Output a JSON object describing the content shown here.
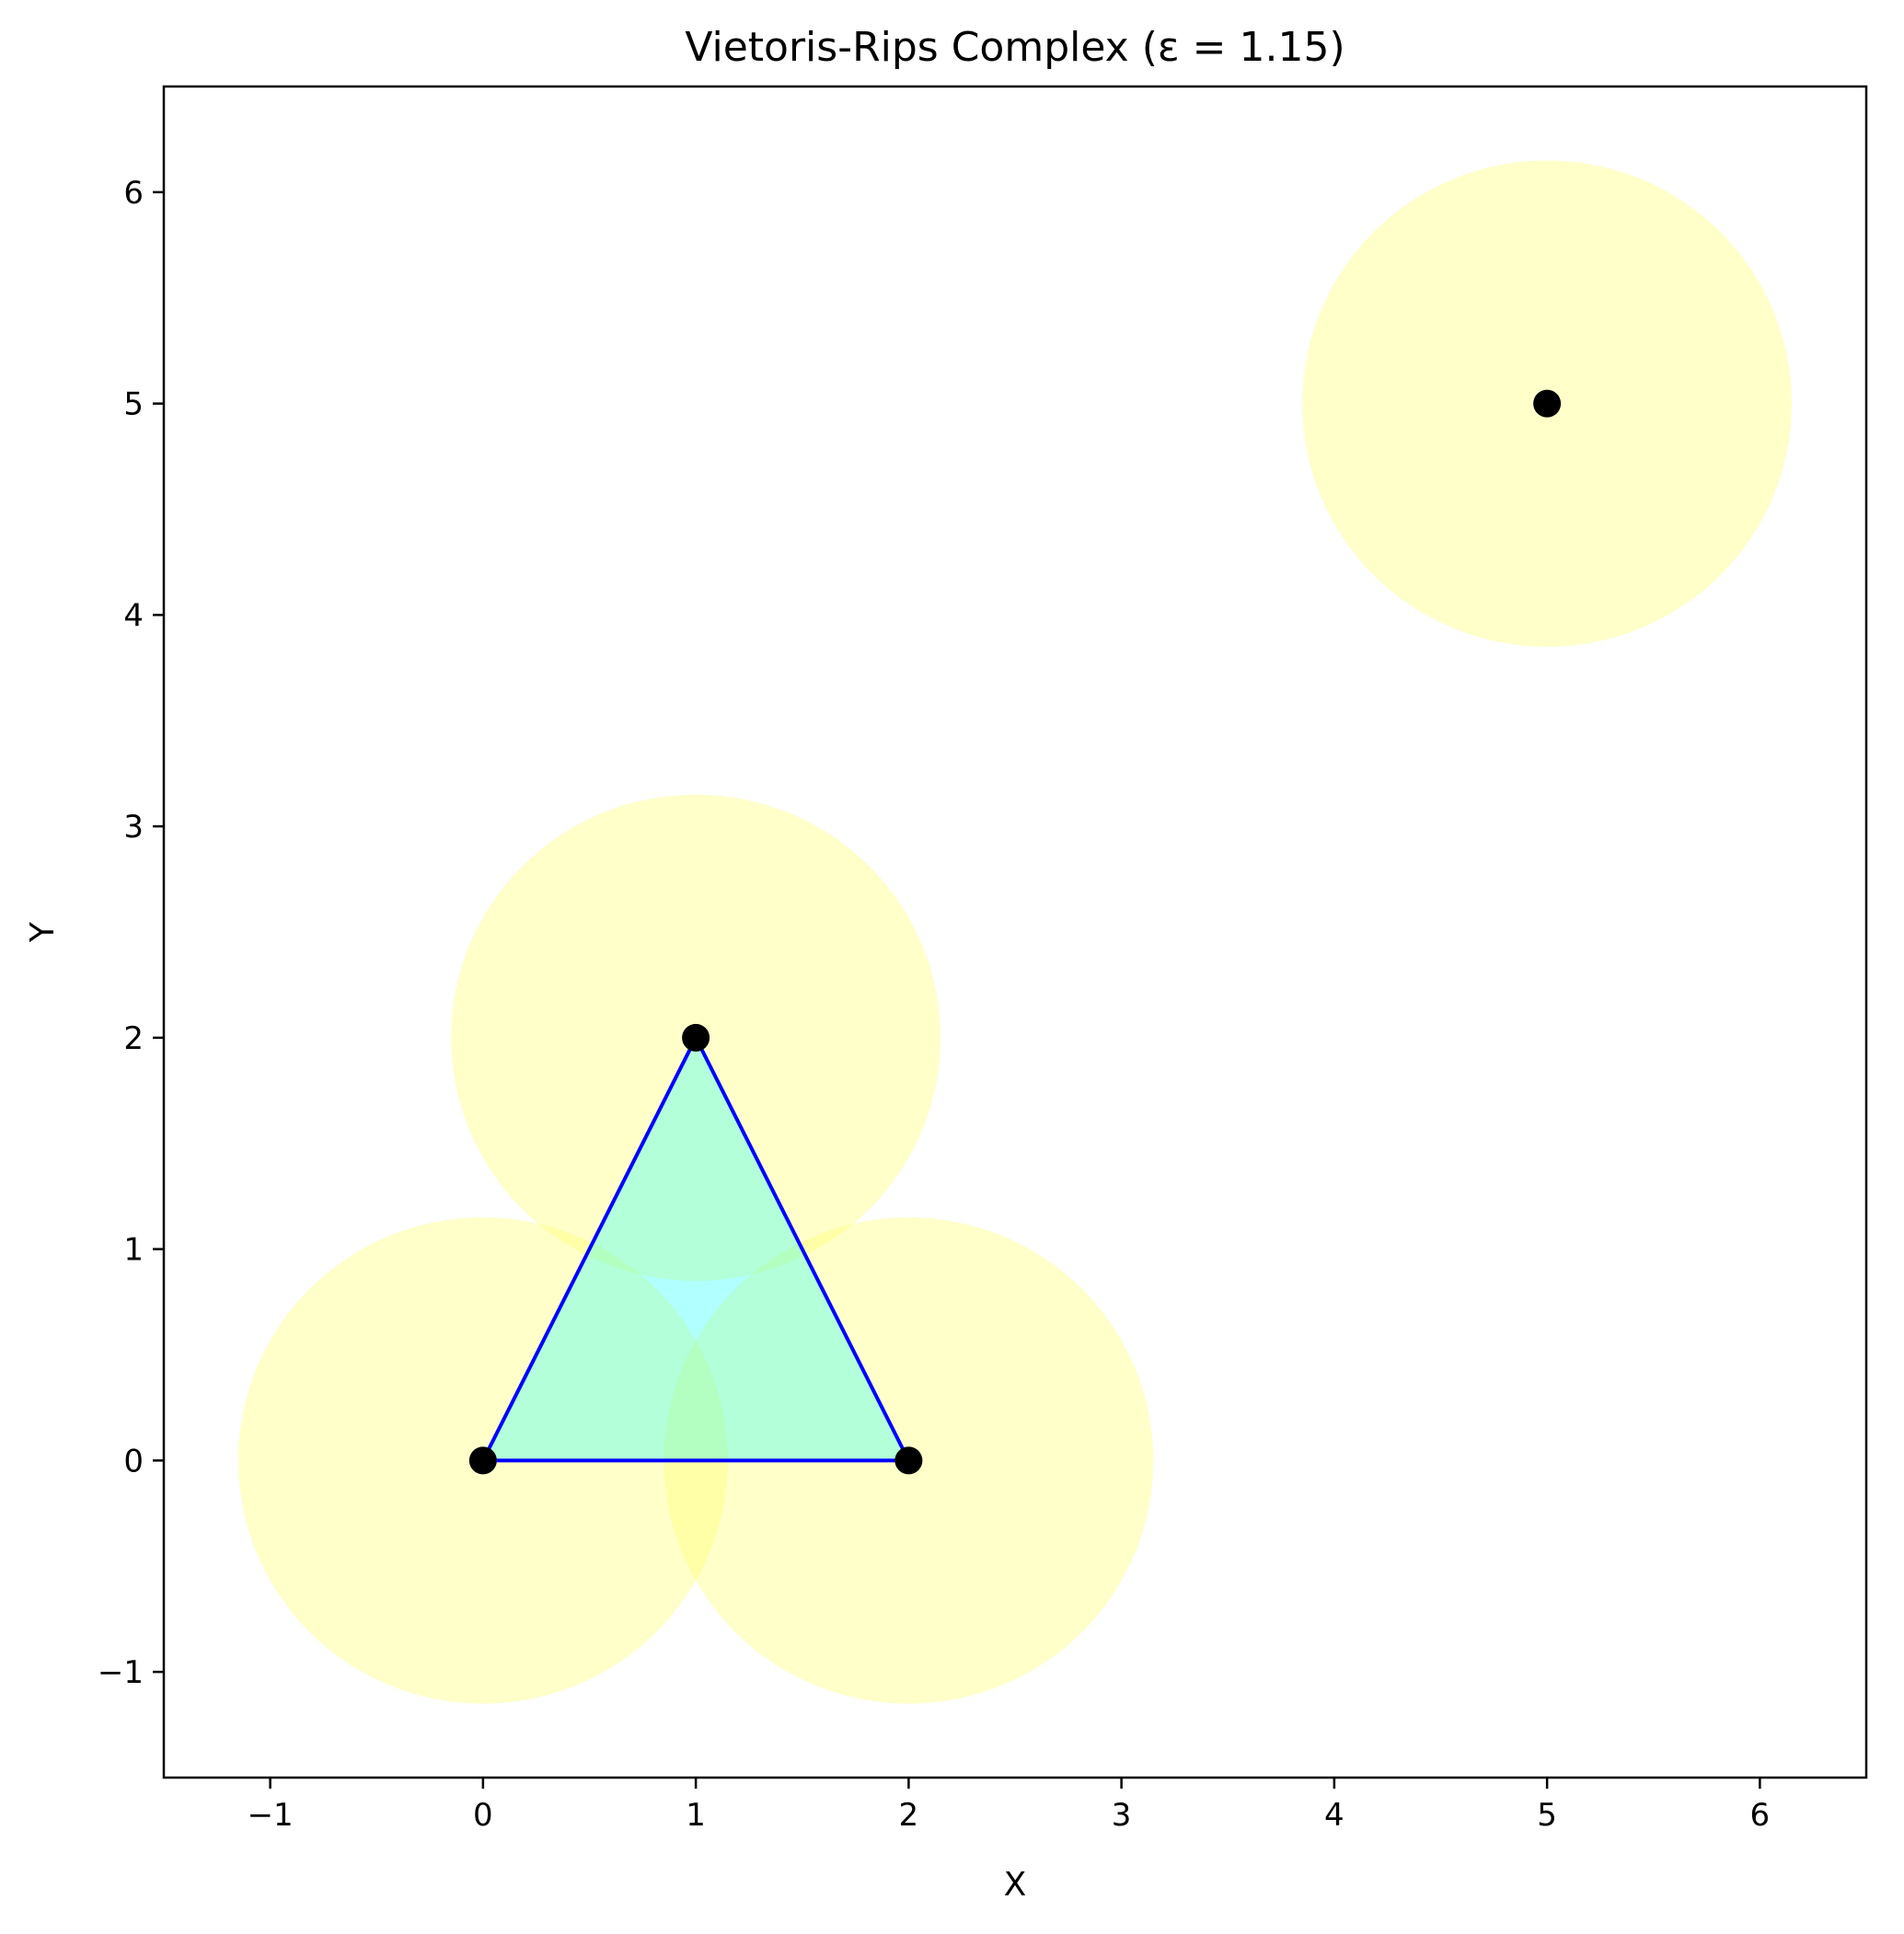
{
  "chart_data": {
    "type": "scatter",
    "title": "Vietoris-Rips Complex (ε = 1.15)",
    "xlabel": "X",
    "ylabel": "Y",
    "xlim": [
      -1.5,
      6.5
    ],
    "ylim": [
      -1.5,
      6.5
    ],
    "epsilon": 1.15,
    "grid": false,
    "xticks": [
      -1,
      0,
      1,
      2,
      3,
      4,
      5,
      6
    ],
    "yticks": [
      -1,
      0,
      1,
      2,
      3,
      4,
      5,
      6
    ],
    "xtick_labels": [
      "−1",
      "0",
      "1",
      "2",
      "3",
      "4",
      "5",
      "6"
    ],
    "ytick_labels": [
      "−1",
      "0",
      "1",
      "2",
      "3",
      "4",
      "5",
      "6"
    ],
    "points": [
      {
        "x": 0,
        "y": 0
      },
      {
        "x": 2,
        "y": 0
      },
      {
        "x": 1,
        "y": 2
      },
      {
        "x": 5,
        "y": 5
      }
    ],
    "edges": [
      [
        0,
        1
      ],
      [
        1,
        2
      ],
      [
        2,
        0
      ]
    ],
    "triangles": [
      [
        0,
        1,
        2
      ]
    ],
    "colors": {
      "ball": "#ffff66",
      "triangle": "#00ffff",
      "edge": "#0000ff",
      "point": "#000000"
    }
  }
}
